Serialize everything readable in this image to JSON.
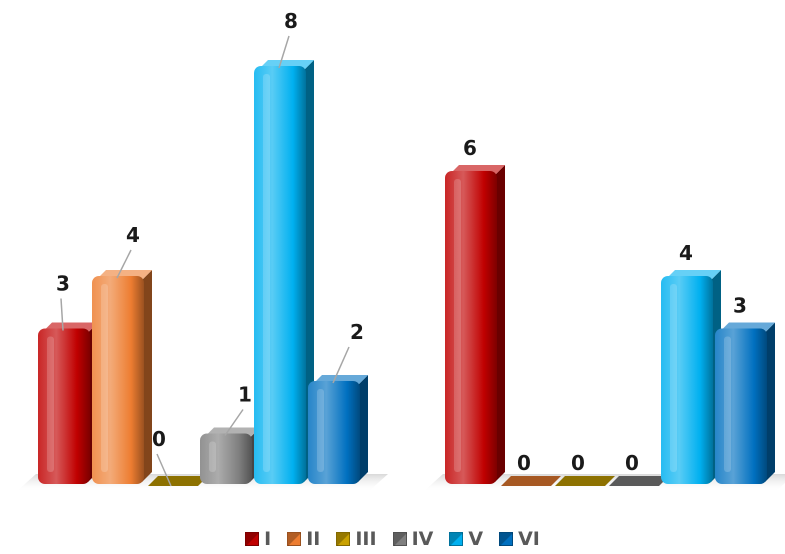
{
  "chart_data": {
    "type": "bar",
    "categories": [
      "I",
      "II",
      "III",
      "IV",
      "V",
      "VI"
    ],
    "colors": [
      "#c00000",
      "#ed7d31",
      "#c9a100",
      "#7f7f7f",
      "#00b0f0",
      "#0070c0"
    ],
    "groups": [
      {
        "values": [
          3,
          4,
          0,
          1,
          8,
          2
        ]
      },
      {
        "values": [
          6,
          0,
          0,
          0,
          4,
          3
        ]
      }
    ],
    "ylim": [
      0,
      8
    ],
    "grid": false,
    "legend_position": "bottom"
  },
  "legend": {
    "items": [
      "I",
      "II",
      "III",
      "IV",
      "V",
      "VI"
    ]
  }
}
